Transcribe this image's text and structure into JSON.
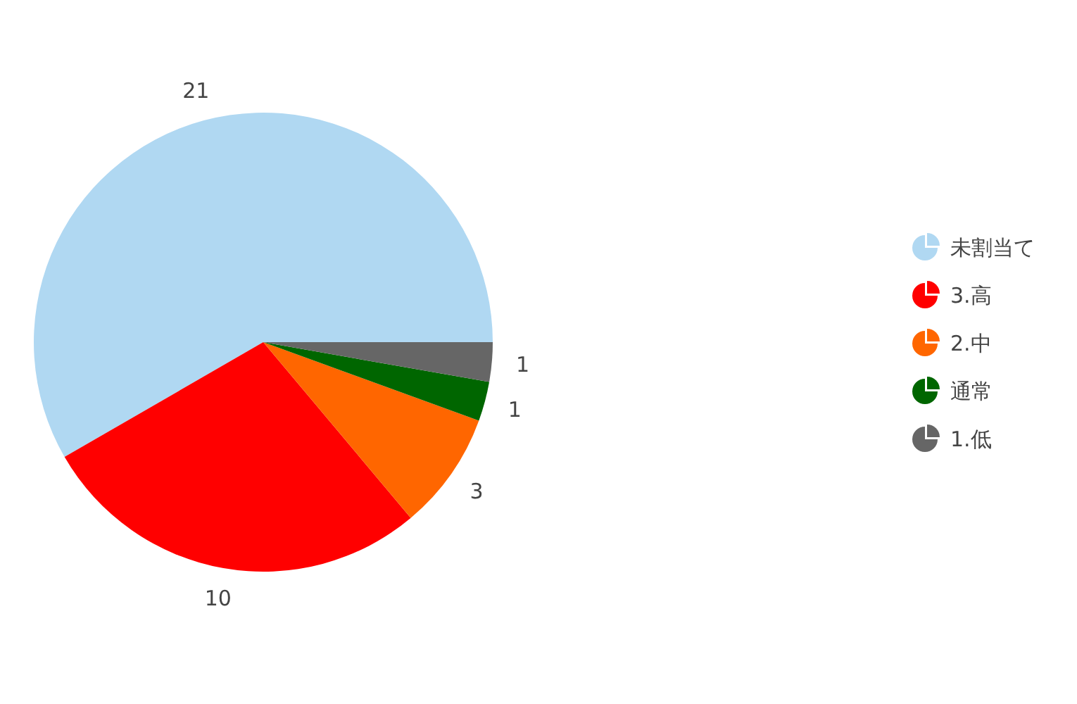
{
  "chart_data": {
    "type": "pie",
    "categories": [
      "未割当て",
      "3.高",
      "2.中",
      "通常",
      "1.低"
    ],
    "values": [
      21,
      10,
      3,
      1,
      1
    ],
    "colors": [
      "#b0d8f2",
      "#ff0000",
      "#ff6600",
      "#006600",
      "#666666"
    ],
    "data_labels": true,
    "legend": "right"
  }
}
